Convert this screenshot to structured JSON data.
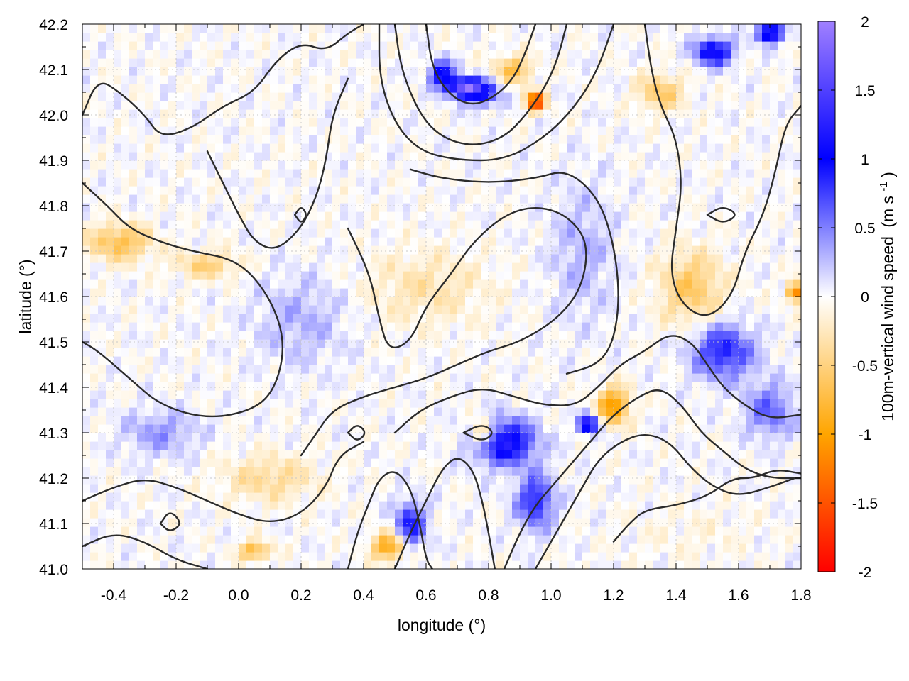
{
  "chart_data": {
    "type": "heatmap",
    "xlabel": "longitude (°)",
    "ylabel": "latitude (°)",
    "colorbar_label": "100m-vertical wind speed",
    "colorbar_unit_base": "(m s",
    "colorbar_unit_exp": "-1",
    "colorbar_unit_close": ")",
    "xlim": [
      -0.5,
      1.8
    ],
    "ylim": [
      41.0,
      42.2
    ],
    "clim": [
      -2,
      2
    ],
    "x_ticks": [
      {
        "value": -0.4,
        "label": "-0.4"
      },
      {
        "value": -0.2,
        "label": "-0.2"
      },
      {
        "value": 0.0,
        "label": "0.0"
      },
      {
        "value": 0.2,
        "label": "0.2"
      },
      {
        "value": 0.4,
        "label": "0.4"
      },
      {
        "value": 0.6,
        "label": "0.6"
      },
      {
        "value": 0.8,
        "label": "0.8"
      },
      {
        "value": 1.0,
        "label": "1.0"
      },
      {
        "value": 1.2,
        "label": "1.2"
      },
      {
        "value": 1.4,
        "label": "1.4"
      },
      {
        "value": 1.6,
        "label": "1.6"
      },
      {
        "value": 1.8,
        "label": "1.8"
      }
    ],
    "y_ticks": [
      {
        "value": 41.0,
        "label": "41.0"
      },
      {
        "value": 41.1,
        "label": "41.1"
      },
      {
        "value": 41.2,
        "label": "41.2"
      },
      {
        "value": 41.3,
        "label": "41.3"
      },
      {
        "value": 41.4,
        "label": "41.4"
      },
      {
        "value": 41.5,
        "label": "41.5"
      },
      {
        "value": 41.6,
        "label": "41.6"
      },
      {
        "value": 41.7,
        "label": "41.7"
      },
      {
        "value": 41.8,
        "label": "41.8"
      },
      {
        "value": 41.9,
        "label": "41.9"
      },
      {
        "value": 42.0,
        "label": "42.0"
      },
      {
        "value": 42.1,
        "label": "42.1"
      },
      {
        "value": 42.2,
        "label": "42.2"
      }
    ],
    "colorbar_ticks": [
      {
        "value": 2,
        "label": "2"
      },
      {
        "value": 1.5,
        "label": "1.5"
      },
      {
        "value": 1,
        "label": "1"
      },
      {
        "value": 0.5,
        "label": "0.5"
      },
      {
        "value": 0,
        "label": "0"
      },
      {
        "value": -0.5,
        "label": "-0.5"
      },
      {
        "value": -1,
        "label": "-1"
      },
      {
        "value": -1.5,
        "label": "-1.5"
      },
      {
        "value": -2,
        "label": "-2"
      }
    ],
    "colormap": [
      {
        "value": -2,
        "color": "#ff0000"
      },
      {
        "value": -1,
        "color": "#ffa500"
      },
      {
        "value": 0,
        "color": "#ffffff"
      },
      {
        "value": 1,
        "color": "#0000ff"
      },
      {
        "value": 2,
        "color": "#a080ff"
      }
    ],
    "field_hotspots": [
      {
        "lon": 0.78,
        "lat": 42.05,
        "w": 0.9,
        "rx": 0.06,
        "ry": 0.03
      },
      {
        "lon": 0.72,
        "lat": 42.06,
        "w": 1.6,
        "rx": 0.05,
        "ry": 0.02
      },
      {
        "lon": 0.95,
        "lat": 42.03,
        "w": -1.8,
        "rx": 0.03,
        "ry": 0.02
      },
      {
        "lon": 0.65,
        "lat": 42.09,
        "w": 1.1,
        "rx": 0.04,
        "ry": 0.03
      },
      {
        "lon": 0.88,
        "lat": 42.1,
        "w": -0.7,
        "rx": 0.06,
        "ry": 0.03
      },
      {
        "lon": 1.52,
        "lat": 42.14,
        "w": 1.2,
        "rx": 0.06,
        "ry": 0.03
      },
      {
        "lon": 1.7,
        "lat": 42.18,
        "w": 1.5,
        "rx": 0.04,
        "ry": 0.02
      },
      {
        "lon": 1.35,
        "lat": 42.05,
        "w": -0.6,
        "rx": 0.07,
        "ry": 0.04
      },
      {
        "lon": 0.85,
        "lat": 41.28,
        "w": 1.2,
        "rx": 0.1,
        "ry": 0.05
      },
      {
        "lon": 1.12,
        "lat": 41.32,
        "w": 1.5,
        "rx": 0.03,
        "ry": 0.02
      },
      {
        "lon": 0.78,
        "lat": 41.3,
        "w": -0.9,
        "rx": 0.04,
        "ry": 0.03
      },
      {
        "lon": 1.2,
        "lat": 41.36,
        "w": -1.1,
        "rx": 0.05,
        "ry": 0.04
      },
      {
        "lon": 0.48,
        "lat": 41.05,
        "w": -1.0,
        "rx": 0.05,
        "ry": 0.03
      },
      {
        "lon": 0.05,
        "lat": 41.04,
        "w": -0.8,
        "rx": 0.05,
        "ry": 0.02
      },
      {
        "lon": 0.55,
        "lat": 41.1,
        "w": 0.9,
        "rx": 0.05,
        "ry": 0.05
      },
      {
        "lon": 0.95,
        "lat": 41.15,
        "w": 0.9,
        "rx": 0.06,
        "ry": 0.06
      },
      {
        "lon": -0.38,
        "lat": 41.72,
        "w": -0.7,
        "rx": 0.1,
        "ry": 0.04
      },
      {
        "lon": -0.1,
        "lat": 41.67,
        "w": -0.5,
        "rx": 0.1,
        "ry": 0.03
      },
      {
        "lon": 1.45,
        "lat": 41.62,
        "w": -0.6,
        "rx": 0.1,
        "ry": 0.08
      },
      {
        "lon": 1.55,
        "lat": 41.48,
        "w": 0.9,
        "rx": 0.1,
        "ry": 0.06
      },
      {
        "lon": 1.7,
        "lat": 41.35,
        "w": 0.6,
        "rx": 0.08,
        "ry": 0.06
      },
      {
        "lon": 1.78,
        "lat": 41.61,
        "w": -1.5,
        "rx": 0.02,
        "ry": 0.02
      },
      {
        "lon": 0.6,
        "lat": 41.62,
        "w": -0.3,
        "rx": 0.2,
        "ry": 0.08
      },
      {
        "lon": 0.1,
        "lat": 41.2,
        "w": -0.4,
        "rx": 0.15,
        "ry": 0.05
      },
      {
        "lon": -0.25,
        "lat": 41.3,
        "w": 0.4,
        "rx": 0.12,
        "ry": 0.05
      },
      {
        "lon": 0.2,
        "lat": 41.55,
        "w": 0.3,
        "rx": 0.15,
        "ry": 0.1
      },
      {
        "lon": 1.1,
        "lat": 41.7,
        "w": 0.3,
        "rx": 0.1,
        "ry": 0.15
      },
      {
        "lon": 1.45,
        "lat": 41.08,
        "w": -0.1,
        "rx": 0.2,
        "ry": 0.06
      }
    ],
    "contours": [
      [
        [
          -0.5,
          42.0
        ],
        [
          -0.45,
          42.08
        ],
        [
          -0.38,
          42.05
        ],
        [
          -0.3,
          42.0
        ],
        [
          -0.25,
          41.95
        ],
        [
          -0.15,
          41.97
        ],
        [
          -0.05,
          42.02
        ],
        [
          0.05,
          42.05
        ],
        [
          0.12,
          42.12
        ],
        [
          0.2,
          42.16
        ],
        [
          0.28,
          42.14
        ],
        [
          0.35,
          42.18
        ],
        [
          0.4,
          42.2
        ]
      ],
      [
        [
          -0.5,
          41.85
        ],
        [
          -0.42,
          41.8
        ],
        [
          -0.35,
          41.75
        ],
        [
          -0.25,
          41.72
        ],
        [
          -0.15,
          41.7
        ],
        [
          0.0,
          41.68
        ],
        [
          0.1,
          41.6
        ],
        [
          0.15,
          41.5
        ],
        [
          0.12,
          41.4
        ],
        [
          0.05,
          41.35
        ],
        [
          -0.1,
          41.33
        ],
        [
          -0.25,
          41.36
        ],
        [
          -0.35,
          41.42
        ],
        [
          -0.45,
          41.48
        ],
        [
          -0.5,
          41.5
        ]
      ],
      [
        [
          -0.1,
          41.92
        ],
        [
          -0.05,
          41.85
        ],
        [
          0.0,
          41.78
        ],
        [
          0.05,
          41.72
        ],
        [
          0.12,
          41.7
        ],
        [
          0.2,
          41.75
        ],
        [
          0.25,
          41.82
        ],
        [
          0.28,
          41.9
        ],
        [
          0.3,
          42.0
        ],
        [
          0.35,
          42.08
        ]
      ],
      [
        [
          0.35,
          41.75
        ],
        [
          0.42,
          41.65
        ],
        [
          0.45,
          41.55
        ],
        [
          0.48,
          41.48
        ],
        [
          0.55,
          41.5
        ],
        [
          0.6,
          41.58
        ],
        [
          0.68,
          41.65
        ],
        [
          0.75,
          41.72
        ],
        [
          0.85,
          41.78
        ],
        [
          0.95,
          41.8
        ],
        [
          1.05,
          41.78
        ],
        [
          1.12,
          41.72
        ],
        [
          1.1,
          41.62
        ],
        [
          1.02,
          41.55
        ],
        [
          0.9,
          41.5
        ],
        [
          0.8,
          41.48
        ],
        [
          0.7,
          41.45
        ],
        [
          0.6,
          41.42
        ],
        [
          0.5,
          41.4
        ],
        [
          0.4,
          41.38
        ],
        [
          0.3,
          41.35
        ],
        [
          0.25,
          41.3
        ],
        [
          0.2,
          41.25
        ]
      ],
      [
        [
          0.55,
          41.88
        ],
        [
          0.65,
          41.86
        ],
        [
          0.8,
          41.85
        ],
        [
          0.95,
          41.86
        ],
        [
          1.05,
          41.88
        ],
        [
          1.15,
          41.82
        ],
        [
          1.2,
          41.72
        ],
        [
          1.22,
          41.6
        ],
        [
          1.2,
          41.5
        ],
        [
          1.15,
          41.45
        ],
        [
          1.05,
          41.43
        ]
      ],
      [
        [
          0.5,
          41.3
        ],
        [
          0.58,
          41.35
        ],
        [
          0.68,
          41.38
        ],
        [
          0.78,
          41.4
        ],
        [
          0.88,
          41.38
        ],
        [
          0.98,
          41.36
        ],
        [
          1.08,
          41.36
        ],
        [
          1.15,
          41.4
        ],
        [
          1.22,
          41.45
        ],
        [
          1.3,
          41.48
        ],
        [
          1.38,
          41.52
        ],
        [
          1.45,
          41.5
        ],
        [
          1.5,
          41.45
        ],
        [
          1.55,
          41.4
        ],
        [
          1.62,
          41.36
        ],
        [
          1.7,
          41.33
        ],
        [
          1.8,
          41.34
        ]
      ],
      [
        [
          0.85,
          41.0
        ],
        [
          0.9,
          41.08
        ],
        [
          0.95,
          41.14
        ],
        [
          1.0,
          41.18
        ],
        [
          1.05,
          41.22
        ],
        [
          1.1,
          41.26
        ],
        [
          1.15,
          41.3
        ],
        [
          1.2,
          41.34
        ],
        [
          1.28,
          41.38
        ],
        [
          1.35,
          41.4
        ],
        [
          1.42,
          41.36
        ],
        [
          1.48,
          41.3
        ],
        [
          1.55,
          41.26
        ],
        [
          1.62,
          41.22
        ],
        [
          1.7,
          41.2
        ],
        [
          1.8,
          41.2
        ]
      ],
      [
        [
          0.95,
          41.0
        ],
        [
          1.0,
          41.06
        ],
        [
          1.05,
          41.12
        ],
        [
          1.1,
          41.18
        ],
        [
          1.15,
          41.24
        ],
        [
          1.22,
          41.28
        ],
        [
          1.3,
          41.3
        ],
        [
          1.38,
          41.28
        ],
        [
          1.45,
          41.22
        ],
        [
          1.52,
          41.18
        ],
        [
          1.6,
          41.16
        ],
        [
          1.7,
          41.18
        ],
        [
          1.78,
          41.2
        ]
      ],
      [
        [
          1.2,
          41.06
        ],
        [
          1.25,
          41.1
        ],
        [
          1.3,
          41.13
        ],
        [
          1.4,
          41.14
        ],
        [
          1.5,
          41.16
        ],
        [
          1.58,
          41.2
        ],
        [
          1.65,
          41.2
        ],
        [
          1.72,
          41.22
        ],
        [
          1.8,
          41.21
        ]
      ],
      [
        [
          0.5,
          41.0
        ],
        [
          0.55,
          41.08
        ],
        [
          0.6,
          41.15
        ],
        [
          0.65,
          41.22
        ],
        [
          0.7,
          41.25
        ],
        [
          0.75,
          41.22
        ],
        [
          0.78,
          41.15
        ],
        [
          0.8,
          41.08
        ],
        [
          0.82,
          41.0
        ]
      ],
      [
        [
          0.35,
          41.0
        ],
        [
          0.38,
          41.08
        ],
        [
          0.42,
          41.15
        ],
        [
          0.45,
          41.2
        ],
        [
          0.5,
          41.22
        ],
        [
          0.55,
          41.18
        ],
        [
          0.58,
          41.1
        ],
        [
          0.6,
          41.02
        ],
        [
          0.62,
          41.0
        ]
      ],
      [
        [
          -0.5,
          41.15
        ],
        [
          -0.4,
          41.18
        ],
        [
          -0.3,
          41.2
        ],
        [
          -0.2,
          41.18
        ],
        [
          -0.1,
          41.15
        ],
        [
          0.0,
          41.12
        ],
        [
          0.1,
          41.1
        ],
        [
          0.2,
          41.12
        ],
        [
          0.28,
          41.18
        ],
        [
          0.32,
          41.25
        ],
        [
          0.4,
          41.28
        ]
      ],
      [
        [
          -0.5,
          41.05
        ],
        [
          -0.4,
          41.08
        ],
        [
          -0.3,
          41.06
        ],
        [
          -0.2,
          41.02
        ],
        [
          -0.1,
          41.0
        ]
      ],
      [
        [
          1.3,
          42.2
        ],
        [
          1.32,
          42.1
        ],
        [
          1.35,
          42.02
        ],
        [
          1.4,
          41.95
        ],
        [
          1.42,
          41.85
        ],
        [
          1.4,
          41.75
        ],
        [
          1.38,
          41.65
        ],
        [
          1.42,
          41.58
        ],
        [
          1.5,
          41.55
        ],
        [
          1.58,
          41.6
        ],
        [
          1.62,
          41.7
        ],
        [
          1.68,
          41.78
        ],
        [
          1.72,
          41.88
        ],
        [
          1.75,
          41.98
        ],
        [
          1.8,
          42.02
        ]
      ],
      [
        [
          0.6,
          42.2
        ],
        [
          0.62,
          42.1
        ],
        [
          0.68,
          42.04
        ],
        [
          0.75,
          42.02
        ],
        [
          0.82,
          42.04
        ],
        [
          0.88,
          42.08
        ],
        [
          0.92,
          42.14
        ],
        [
          0.95,
          42.2
        ]
      ],
      [
        [
          0.5,
          42.2
        ],
        [
          0.52,
          42.1
        ],
        [
          0.58,
          42.0
        ],
        [
          0.65,
          41.95
        ],
        [
          0.75,
          41.93
        ],
        [
          0.85,
          41.95
        ],
        [
          0.92,
          42.0
        ],
        [
          0.98,
          42.06
        ],
        [
          1.02,
          42.12
        ],
        [
          1.05,
          42.2
        ]
      ],
      [
        [
          0.45,
          42.2
        ],
        [
          0.45,
          42.08
        ],
        [
          0.5,
          41.98
        ],
        [
          0.58,
          41.92
        ],
        [
          0.7,
          41.9
        ],
        [
          0.85,
          41.9
        ],
        [
          0.98,
          41.95
        ],
        [
          1.08,
          42.02
        ],
        [
          1.15,
          42.1
        ],
        [
          1.2,
          42.2
        ]
      ],
      [
        [
          1.5,
          41.78
        ],
        [
          1.55,
          41.76
        ],
        [
          1.6,
          41.78
        ],
        [
          1.55,
          41.8
        ],
        [
          1.5,
          41.78
        ]
      ],
      [
        [
          0.18,
          41.78
        ],
        [
          0.2,
          41.76
        ],
        [
          0.22,
          41.78
        ],
        [
          0.2,
          41.8
        ],
        [
          0.18,
          41.78
        ]
      ],
      [
        [
          0.72,
          41.3
        ],
        [
          0.78,
          41.28
        ],
        [
          0.82,
          41.3
        ],
        [
          0.78,
          41.32
        ],
        [
          0.72,
          41.3
        ]
      ],
      [
        [
          0.35,
          41.3
        ],
        [
          0.38,
          41.28
        ],
        [
          0.41,
          41.3
        ],
        [
          0.38,
          41.32
        ],
        [
          0.35,
          41.3
        ]
      ],
      [
        [
          -0.25,
          41.1
        ],
        [
          -0.22,
          41.08
        ],
        [
          -0.18,
          41.1
        ],
        [
          -0.22,
          41.13
        ],
        [
          -0.25,
          41.1
        ]
      ]
    ]
  }
}
